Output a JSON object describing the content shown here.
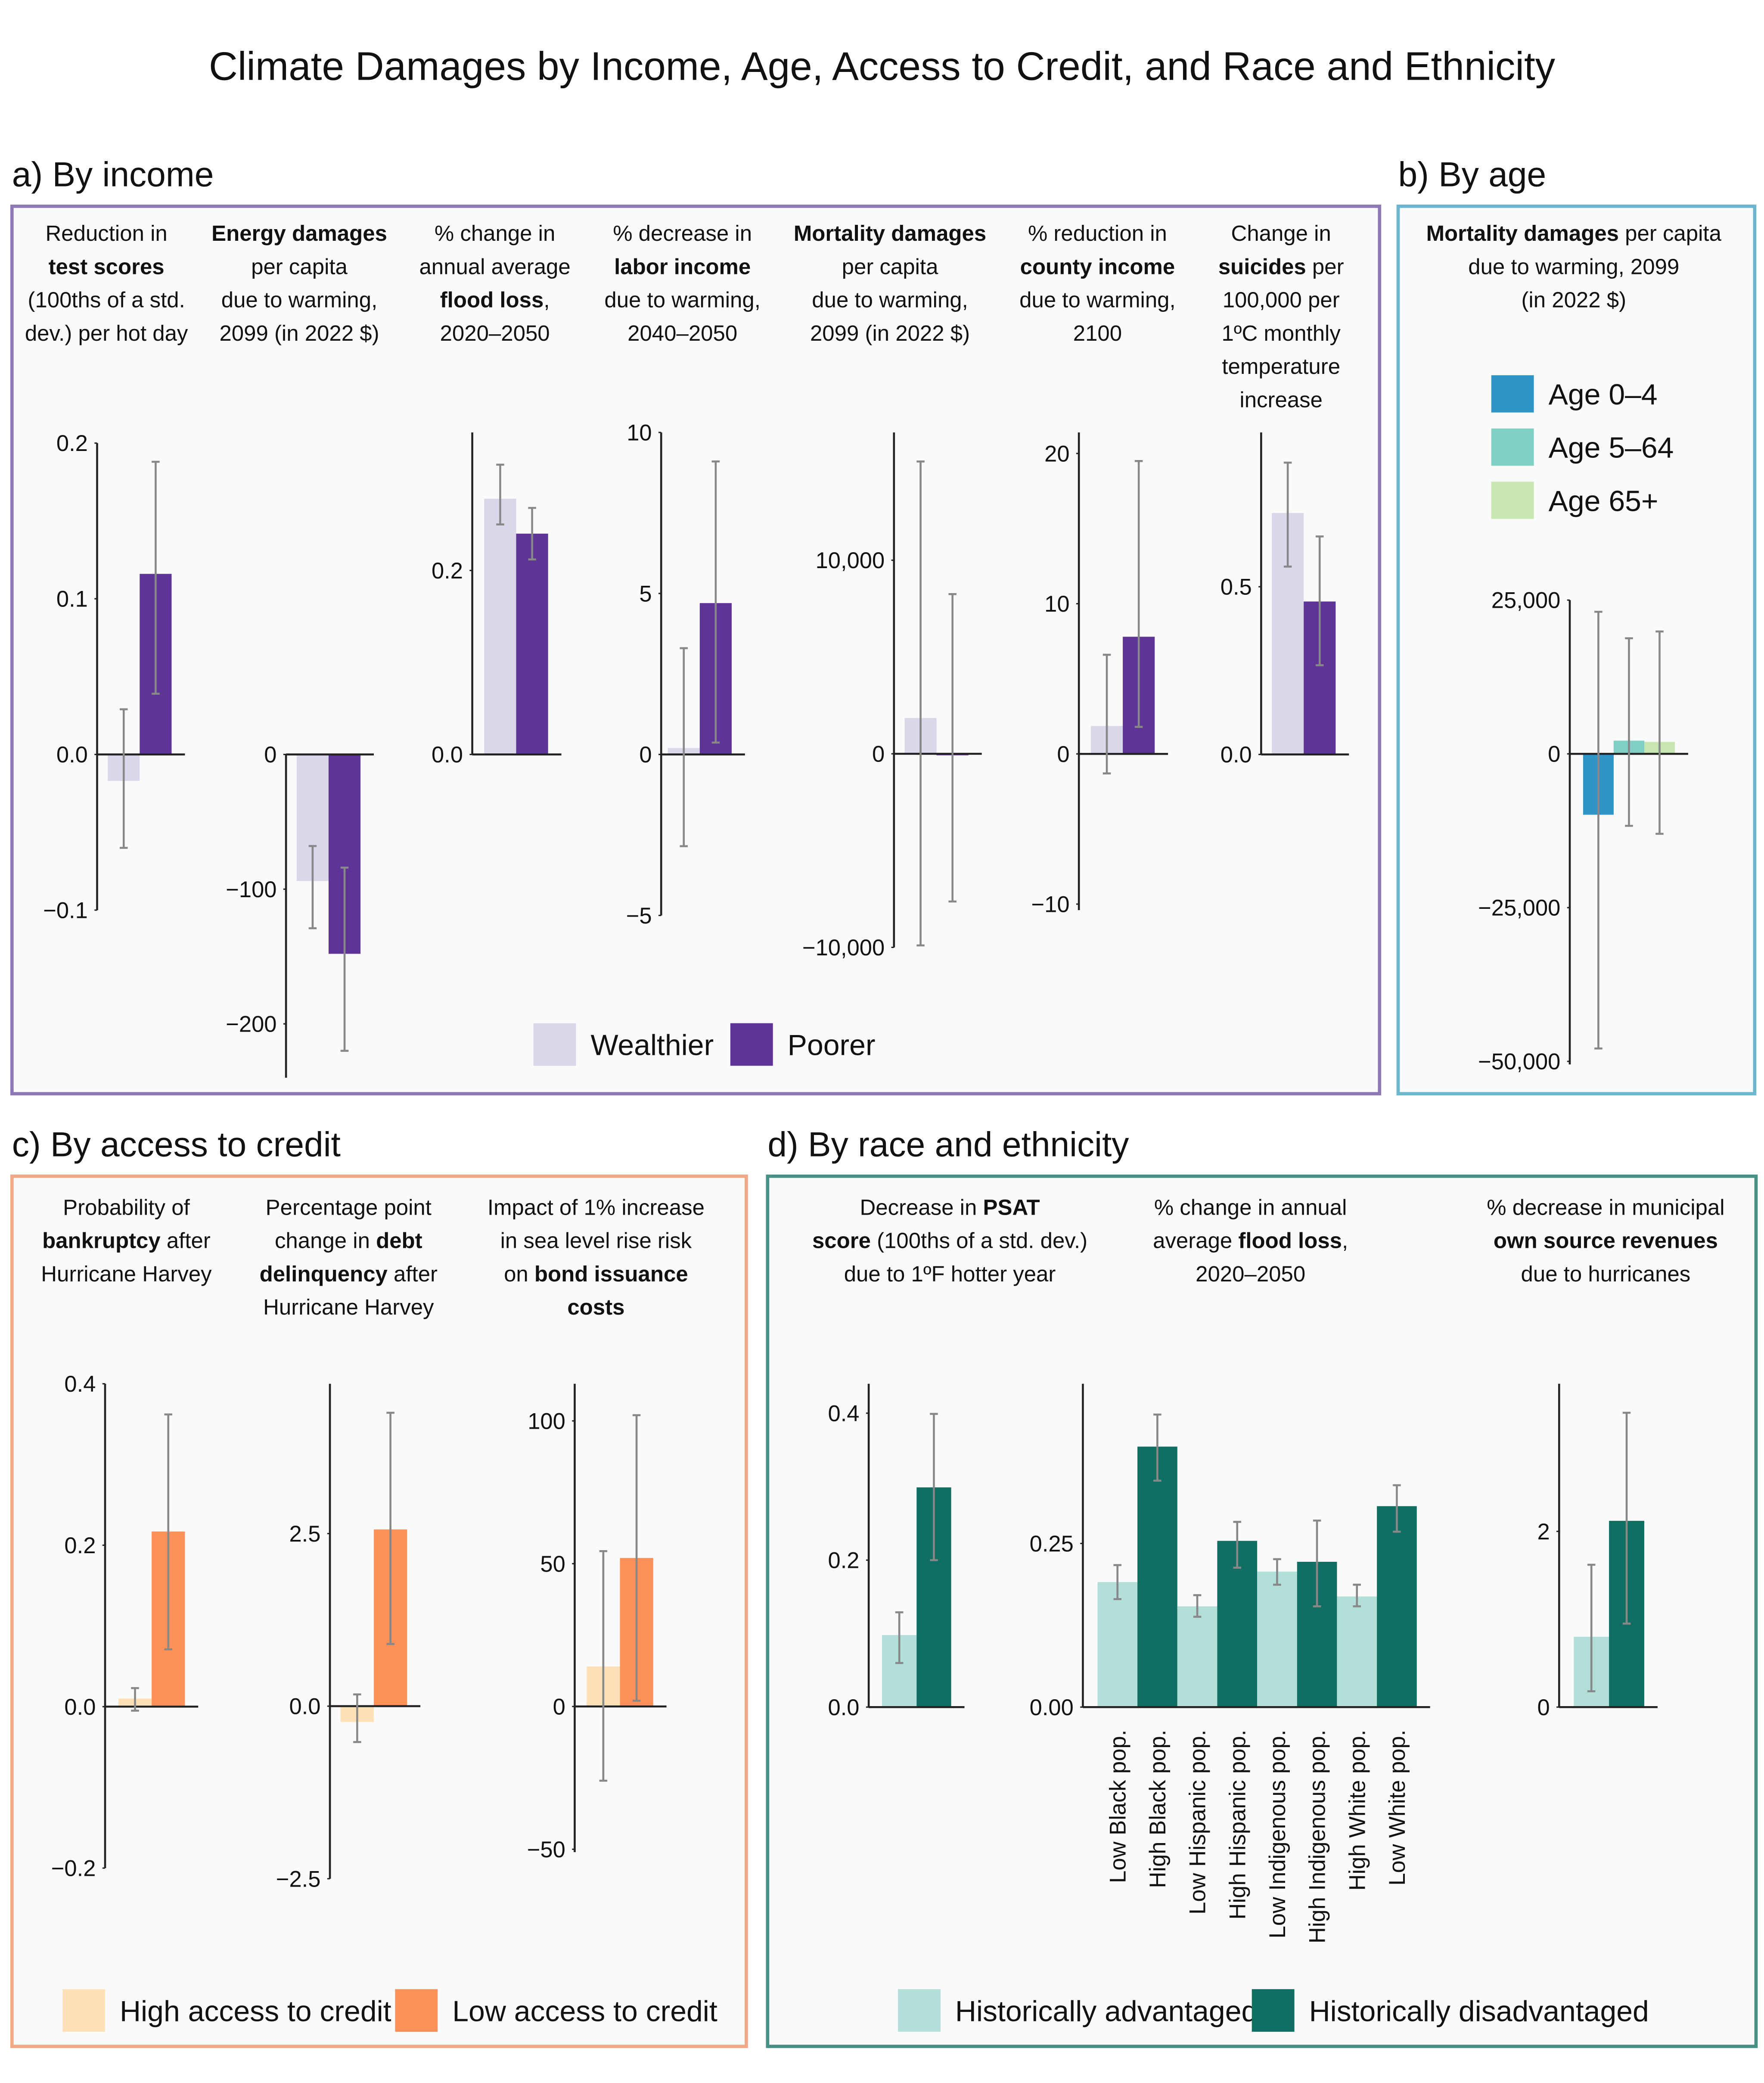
{
  "title": "Climate Damages by Income, Age, Access to Credit, and Race and Ethnicity",
  "panels": [
    {
      "title": "a) By income",
      "legend": [
        {
          "name": "Wealthier",
          "color": "#d8d8ea"
        },
        {
          "name": "Poorer",
          "color": "#5e3496"
        }
      ]
    },
    {
      "title": "b) By age",
      "legend": [
        {
          "name": "Age 0–4",
          "color": "#2e95c6"
        },
        {
          "name": "Age 5–64",
          "color": "#7fcfc5"
        },
        {
          "name": "Age 65+",
          "color": "#c7e6b1"
        }
      ]
    },
    {
      "title": "c) By access to credit",
      "legend": [
        {
          "name": "High access to credit",
          "color": "#fde0b5"
        },
        {
          "name": "Low access to credit",
          "color": "#fb9059"
        }
      ]
    },
    {
      "title": "d) By race and ethnicity",
      "legend": [
        {
          "name": "Historically advantaged",
          "color": "#b3dfd9"
        },
        {
          "name": "Historically disadvantaged",
          "color": "#116e62"
        }
      ]
    }
  ],
  "chart_data": [
    {
      "type": "bar",
      "title": [
        [
          "Reduction in"
        ],
        [
          {
            "bold": "test scores"
          }
        ],
        [
          "(100ths of a std."
        ],
        [
          "dev.) per hot day"
        ]
      ],
      "values": [
        -0.017,
        0.116
      ],
      "ci": [
        [
          -0.06,
          0.029
        ],
        [
          0.039,
          0.188
        ]
      ],
      "colors": [
        "#d8d8ea",
        "#5e3496"
      ],
      "ylim": [
        -0.1,
        0.2
      ],
      "yticks": [
        {
          "value": -0.1,
          "label": "−0.1"
        },
        {
          "value": 0,
          "label": "0.0"
        },
        0.1,
        0.2
      ]
    },
    {
      "type": "bar",
      "title": [
        [
          {
            "bold": "Energy damages"
          }
        ],
        [
          "per capita"
        ],
        [
          "due to warming,"
        ],
        [
          "2099 (in 2022 $)"
        ]
      ],
      "values": [
        -94,
        -148
      ],
      "ci": [
        [
          -129,
          -68
        ],
        [
          -220,
          -84
        ]
      ],
      "colors": [
        "#d8d8ea",
        "#5e3496"
      ],
      "ylim": [
        -240,
        0
      ],
      "yticks": [
        {
          "value": -200,
          "label": "−200"
        },
        {
          "value": -100,
          "label": "−100"
        },
        0
      ]
    },
    {
      "type": "bar",
      "title": [
        [
          "% change in"
        ],
        [
          "annual average"
        ],
        [
          {
            "bold": "flood loss"
          },
          ","
        ],
        [
          "2020–2050"
        ]
      ],
      "values": [
        0.278,
        0.24
      ],
      "ci": [
        [
          0.25,
          0.315
        ],
        [
          0.212,
          0.268
        ]
      ],
      "colors": [
        "#d8d8ea",
        "#5e3496"
      ],
      "ylim": [
        0,
        0.35
      ],
      "yticks": [
        {
          "value": 0,
          "label": "0.0"
        },
        0.2
      ]
    },
    {
      "type": "bar",
      "title": [
        [
          "% decrease in"
        ],
        [
          {
            "bold": "labor income"
          }
        ],
        [
          "due to warming,"
        ],
        [
          "2040–2050"
        ]
      ],
      "values": [
        0.2,
        4.7
      ],
      "ci": [
        [
          -2.85,
          3.3
        ],
        [
          0.37,
          9.1
        ]
      ],
      "colors": [
        "#d8d8ea",
        "#5e3496"
      ],
      "ylim": [
        -5,
        10
      ],
      "yticks": [
        {
          "value": -5,
          "label": "−5"
        },
        0,
        5,
        10
      ]
    },
    {
      "type": "bar",
      "title": [
        [
          {
            "bold": "Mortality damages"
          }
        ],
        [
          "per capita"
        ],
        [
          "due to warming,"
        ],
        [
          "2099 (in 2022 $)"
        ]
      ],
      "values": [
        1850,
        -80
      ],
      "ci": [
        [
          -9900,
          15100
        ],
        [
          -7630,
          8250
        ]
      ],
      "colors": [
        "#d8d8ea",
        "#5e3496"
      ],
      "ylim": [
        -10000,
        16600
      ],
      "yticks": [
        {
          "value": -10000,
          "label": "−10,000"
        },
        0,
        {
          "value": 10000,
          "label": "10,000"
        }
      ]
    },
    {
      "type": "bar",
      "title": [
        [
          "% reduction in"
        ],
        [
          {
            "bold": "county income"
          }
        ],
        [
          "due to warming,"
        ],
        [
          "2100"
        ]
      ],
      "values": [
        1.86,
        7.8
      ],
      "ci": [
        [
          -1.3,
          6.6
        ],
        [
          1.8,
          19.5
        ]
      ],
      "colors": [
        "#d8d8ea",
        "#5e3496"
      ],
      "ylim": [
        -10.4,
        21.4
      ],
      "yticks": [
        {
          "value": -10,
          "label": "−10"
        },
        0,
        10,
        20
      ]
    },
    {
      "type": "bar",
      "title": [
        [
          "Change in"
        ],
        [
          {
            "bold": "suicides"
          },
          " per"
        ],
        [
          "100,000 per"
        ],
        [
          "1ºC monthly"
        ],
        [
          "temperature"
        ],
        [
          "increase"
        ]
      ],
      "values": [
        0.72,
        0.456
      ],
      "ci": [
        [
          0.56,
          0.87
        ],
        [
          0.266,
          0.65
        ]
      ],
      "colors": [
        "#d8d8ea",
        "#5e3496"
      ],
      "ylim": [
        0,
        0.96
      ],
      "yticks": [
        {
          "value": 0,
          "label": "0.0"
        },
        0.5
      ]
    },
    {
      "type": "bar",
      "title": [
        [
          {
            "bold": "Mortality damages"
          },
          " per capita"
        ],
        [
          "due to warming, 2099"
        ],
        [
          "(in 2022 $)"
        ]
      ],
      "values": [
        -9900,
        2150,
        1950
      ],
      "ci": [
        [
          -47900,
          23100
        ],
        [
          -11700,
          18800
        ],
        [
          -13000,
          19900
        ]
      ],
      "colors": [
        "#2e95c6",
        "#7fcfc5",
        "#c7e6b1"
      ],
      "ylim": [
        -50500,
        25000
      ],
      "yticks": [
        {
          "value": -50000,
          "label": "−50,000"
        },
        {
          "value": -25000,
          "label": "−25,000"
        },
        0,
        {
          "value": 25000,
          "label": "25,000"
        }
      ]
    },
    {
      "type": "bar",
      "title": [
        [
          "Probability of"
        ],
        [
          {
            "bold": "bankruptcy"
          },
          " after"
        ],
        [
          "Hurricane Harvey"
        ]
      ],
      "values": [
        0.01,
        0.217
      ],
      "ci": [
        [
          -0.005,
          0.023
        ],
        [
          0.071,
          0.362
        ]
      ],
      "colors": [
        "#fde0b5",
        "#fb9059"
      ],
      "ylim": [
        -0.2,
        0.4
      ],
      "yticks": [
        {
          "value": -0.2,
          "label": "−0.2"
        },
        {
          "value": 0,
          "label": "0.0"
        },
        0.2,
        0.4
      ]
    },
    {
      "type": "bar",
      "title": [
        [
          "Percentage point"
        ],
        [
          "change in ",
          {
            "bold": "debt"
          }
        ],
        [
          {
            "bold": "delinquency"
          },
          " after"
        ],
        [
          "Hurricane Harvey"
        ]
      ],
      "values": [
        -0.23,
        2.56
      ],
      "ci": [
        [
          -0.52,
          0.17
        ],
        [
          0.9,
          4.25
        ]
      ],
      "colors": [
        "#fde0b5",
        "#fb9059"
      ],
      "ylim": [
        -2.5,
        4.67
      ],
      "yticks": [
        {
          "value": -2.5,
          "label": "−2.5"
        },
        {
          "value": 0,
          "label": "0.0"
        },
        2.5
      ]
    },
    {
      "type": "bar",
      "title": [
        [
          "Impact of 1% increase"
        ],
        [
          "in sea level rise risk"
        ],
        [
          "on ",
          {
            "bold": "bond issuance"
          }
        ],
        [
          {
            "bold": "costs"
          }
        ]
      ],
      "values": [
        14,
        52
      ],
      "ci": [
        [
          -26,
          54.4
        ],
        [
          2,
          102
        ]
      ],
      "colors": [
        "#fde0b5",
        "#fb9059"
      ],
      "ylim": [
        -51,
        113
      ],
      "yticks": [
        {
          "value": -50,
          "label": "−50"
        },
        0,
        50,
        100
      ]
    },
    {
      "type": "bar",
      "title": [
        [
          "Decrease in ",
          {
            "bold": "PSAT"
          }
        ],
        [
          {
            "bold": "score"
          },
          " (100ths of a std. dev.)"
        ],
        [
          "due to 1ºF hotter year"
        ]
      ],
      "values": [
        0.098,
        0.299
      ],
      "ci": [
        [
          0.06,
          0.129
        ],
        [
          0.2,
          0.399
        ]
      ],
      "colors": [
        "#b3dfd9",
        "#116e62"
      ],
      "ylim": [
        0,
        0.44
      ],
      "yticks": [
        {
          "value": 0,
          "label": "0.0"
        },
        0.2,
        0.4
      ]
    },
    {
      "type": "bar",
      "title": [
        [
          "% change in annual"
        ],
        [
          "average ",
          {
            "bold": "flood loss"
          },
          ","
        ],
        [
          "2020–2050"
        ]
      ],
      "categories": [
        "Low Black pop.",
        "High Black pop.",
        "Low Hispanic pop.",
        "High Hispanic pop.",
        "Low Indigenous pop.",
        "High Indigenous pop.",
        "High White pop.",
        "Low White pop."
      ],
      "values": [
        0.191,
        0.398,
        0.154,
        0.254,
        0.207,
        0.222,
        0.169,
        0.307
      ],
      "ci": [
        [
          0.165,
          0.217
        ],
        [
          0.346,
          0.447
        ],
        [
          0.138,
          0.171
        ],
        [
          0.213,
          0.283
        ],
        [
          0.187,
          0.226
        ],
        [
          0.154,
          0.285
        ],
        [
          0.154,
          0.187
        ],
        [
          0.268,
          0.339
        ]
      ],
      "colors": [
        "#b3dfd9",
        "#116e62",
        "#b3dfd9",
        "#116e62",
        "#b3dfd9",
        "#116e62",
        "#b3dfd9",
        "#116e62"
      ],
      "ylim": [
        0,
        0.494
      ],
      "yticks": [
        {
          "value": 0,
          "label": "0.00"
        },
        0.25
      ]
    },
    {
      "type": "bar",
      "title": [
        [
          "% decrease in municipal"
        ],
        [
          {
            "bold": "own source revenues"
          }
        ],
        [
          "due to hurricanes"
        ]
      ],
      "values": [
        0.8,
        2.12
      ],
      "ci": [
        [
          0.18,
          1.62
        ],
        [
          0.95,
          3.35
        ]
      ],
      "colors": [
        "#b3dfd9",
        "#116e62"
      ],
      "ylim": [
        0,
        3.68
      ],
      "yticks": [
        0,
        2
      ]
    }
  ]
}
